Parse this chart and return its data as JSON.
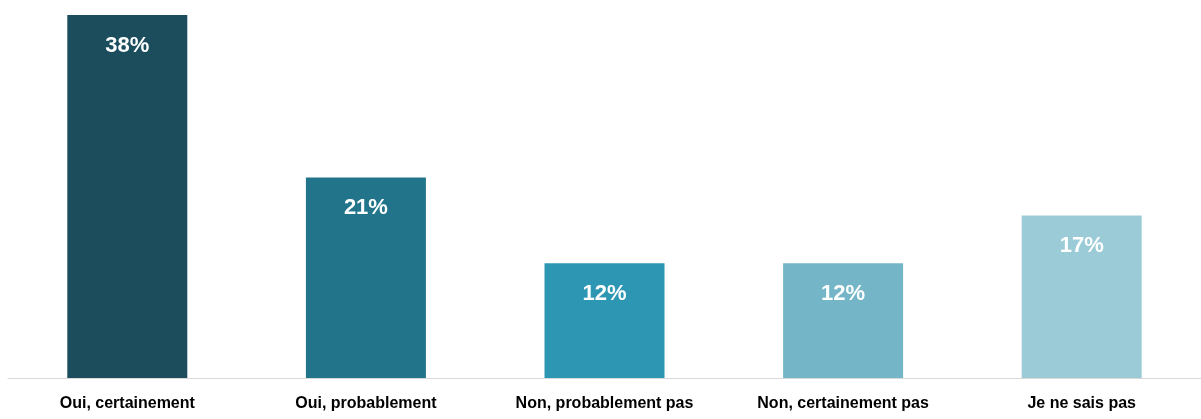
{
  "chart_data": {
    "type": "bar",
    "categories": [
      "Oui, certainement",
      "Oui, probablement",
      "Non, probablement pas",
      "Non, certainement pas",
      "Je ne sais pas"
    ],
    "values": [
      38,
      21,
      12,
      12,
      17
    ],
    "value_labels": [
      "38%",
      "21%",
      "12%",
      "12%",
      "17%"
    ],
    "colors": [
      "#1b4d5c",
      "#22748a",
      "#2d97b3",
      "#74b6c8",
      "#9ccbd8"
    ]
  }
}
